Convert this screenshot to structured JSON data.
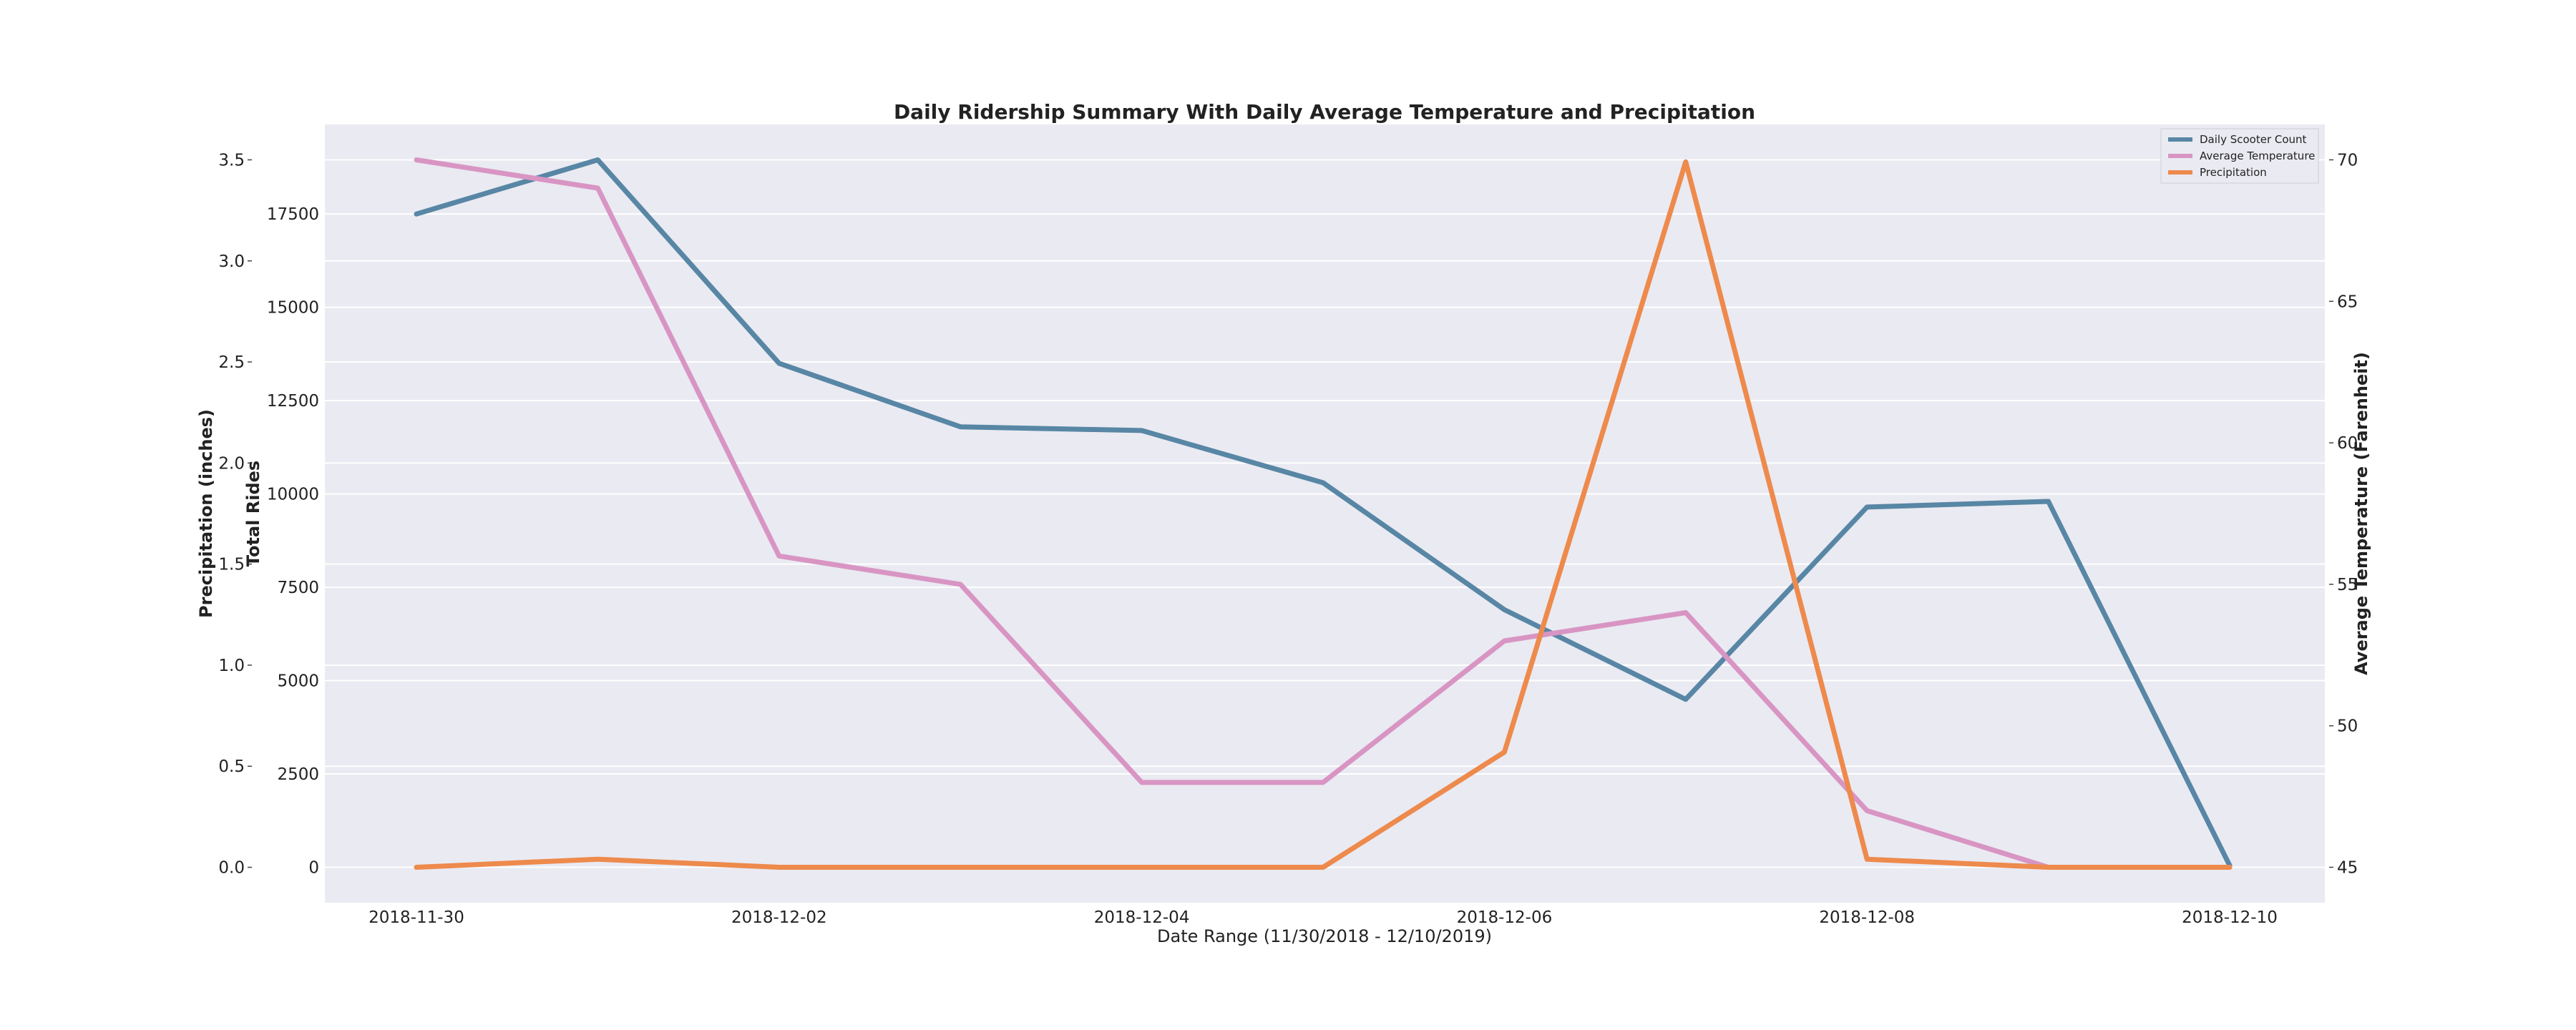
{
  "chart_data": {
    "type": "line",
    "title": "Daily Ridership Summary With Daily Average Temperature and Precipitation",
    "xlabel": "Date Range (11/30/2018 - 12/10/2019)",
    "x": [
      "2018-11-30",
      "2018-12-01",
      "2018-12-02",
      "2018-12-03",
      "2018-12-04",
      "2018-12-05",
      "2018-12-06",
      "2018-12-07",
      "2018-12-08",
      "2018-12-09",
      "2018-12-10"
    ],
    "x_tick_labels": [
      "2018-11-30",
      "2018-12-02",
      "2018-12-04",
      "2018-12-06",
      "2018-12-08",
      "2018-12-10"
    ],
    "grid": true,
    "legend_position": "top-right",
    "series": [
      {
        "name": "Daily Scooter Count",
        "axis": "left-inner",
        "color": "#5886a5",
        "values": [
          17500,
          18950,
          13500,
          11800,
          11700,
          10300,
          6900,
          4500,
          9650,
          9800,
          50
        ]
      },
      {
        "name": "Average Temperature",
        "axis": "right",
        "color": "#d895c3",
        "values": [
          70,
          69,
          56,
          55,
          48,
          48,
          53,
          54,
          47,
          45,
          45
        ]
      },
      {
        "name": "Precipitation",
        "axis": "left-outer",
        "color": "#ed8a4c",
        "values": [
          0.0,
          0.04,
          0.0,
          0.0,
          0.0,
          0.0,
          0.57,
          3.49,
          0.04,
          0.0,
          0.0
        ]
      }
    ],
    "axes": {
      "left_outer": {
        "label": "Precipitation (inches)",
        "color": "#ed8a4c",
        "ticks": [
          "0.0",
          "0.5",
          "1.0",
          "1.5",
          "2.0",
          "2.5",
          "3.0",
          "3.5"
        ],
        "tick_values": [
          0,
          0.5,
          1.0,
          1.5,
          2.0,
          2.5,
          3.0,
          3.5
        ],
        "ylim": [
          -0.175,
          3.675
        ]
      },
      "left_inner": {
        "label": "Total Rides",
        "color": "#5886a5",
        "ticks": [
          "0",
          "2500",
          "5000",
          "7500",
          "10000",
          "12500",
          "15000",
          "17500"
        ],
        "tick_values": [
          0,
          2500,
          5000,
          7500,
          10000,
          12500,
          15000,
          17500
        ],
        "ylim": [
          -948,
          19898
        ]
      },
      "right": {
        "label": "Average Temperature (Farenheit)",
        "color": "#d895c3",
        "ticks": [
          "45",
          "50",
          "55",
          "60",
          "65",
          "70"
        ],
        "tick_values": [
          45,
          50,
          55,
          60,
          65,
          70
        ],
        "ylim": [
          43.75,
          71.25
        ]
      }
    }
  }
}
